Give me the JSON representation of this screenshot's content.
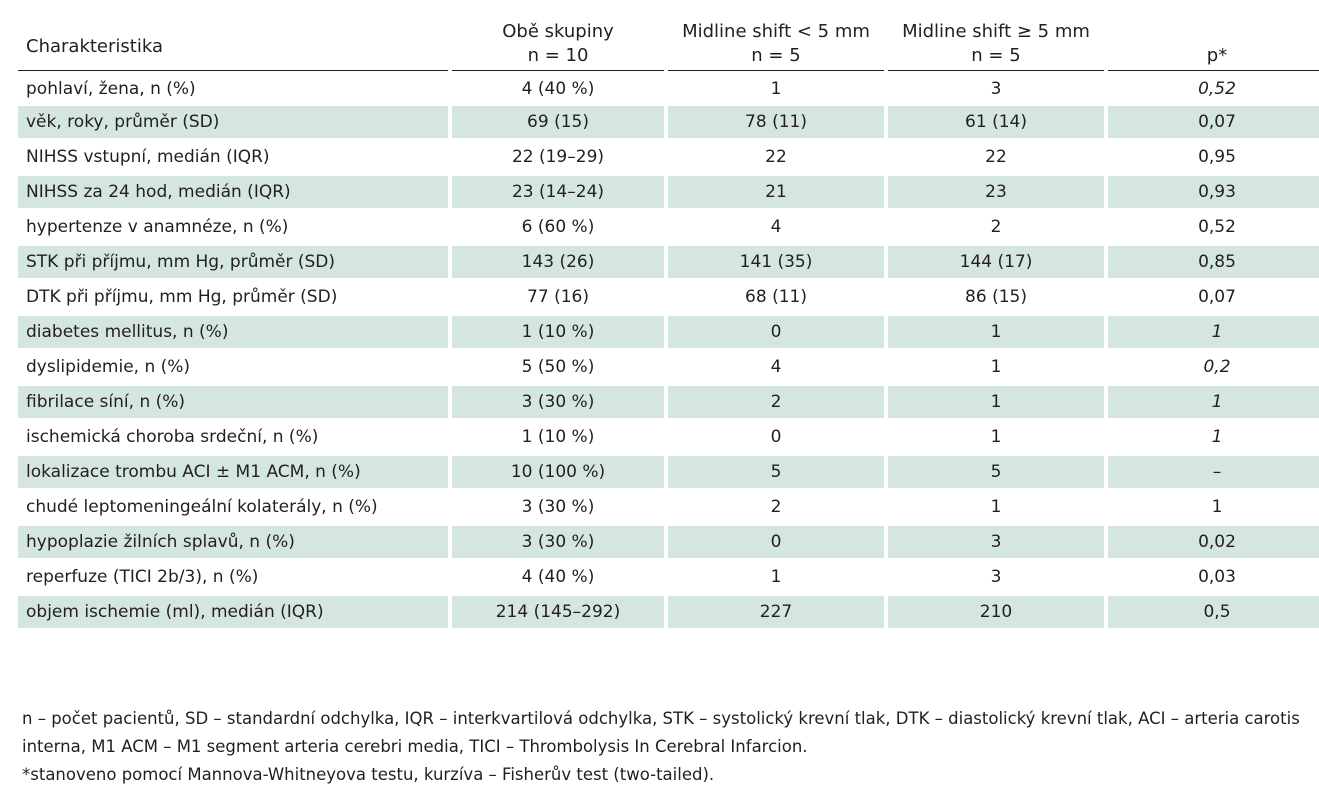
{
  "table": {
    "headers": [
      {
        "line1": "Charakteristika",
        "line2": ""
      },
      {
        "line1": "Obě skupiny",
        "line2": "n = 10"
      },
      {
        "line1": "Midline shift < 5 mm",
        "line2": "n = 5"
      },
      {
        "line1": "Midline shift ≥ 5 mm",
        "line2": "n = 5"
      },
      {
        "line1": "p*",
        "line2": ""
      }
    ],
    "rows": [
      {
        "label": "pohlaví, žena, n (%)",
        "all": "4 (40 %)",
        "lt5": "1",
        "ge5": "3",
        "p": "0,52",
        "p_italic": true,
        "shaded": false
      },
      {
        "label": "věk, roky, průměr (SD)",
        "all": "69 (15)",
        "lt5": "78 (11)",
        "ge5": "61 (14)",
        "p": "0,07",
        "p_italic": false,
        "shaded": true
      },
      {
        "label": "NIHSS vstupní, medián (IQR)",
        "all": "22 (19–29)",
        "lt5": "22",
        "ge5": "22",
        "p": "0,95",
        "p_italic": false,
        "shaded": false
      },
      {
        "label": "NIHSS za 24 hod, medián (IQR)",
        "all": "23 (14–24)",
        "lt5": "21",
        "ge5": "23",
        "p": "0,93",
        "p_italic": false,
        "shaded": true
      },
      {
        "label": "hypertenze v anamnéze, n (%)",
        "all": "6 (60 %)",
        "lt5": "4",
        "ge5": "2",
        "p": "0,52",
        "p_italic": false,
        "shaded": false
      },
      {
        "label": "STK při příjmu, mm Hg, průměr (SD)",
        "all": "143 (26)",
        "lt5": "141 (35)",
        "ge5": "144 (17)",
        "p": "0,85",
        "p_italic": false,
        "shaded": true
      },
      {
        "label": "DTK při příjmu, mm Hg, průměr (SD)",
        "all": "77 (16)",
        "lt5": "68 (11)",
        "ge5": "86 (15)",
        "p": "0,07",
        "p_italic": false,
        "shaded": false
      },
      {
        "label": "diabetes mellitus, n (%)",
        "all": "1 (10 %)",
        "lt5": "0",
        "ge5": "1",
        "p": "1",
        "p_italic": true,
        "shaded": true
      },
      {
        "label": "dyslipidemie, n (%)",
        "all": "5 (50 %)",
        "lt5": "4",
        "ge5": "1",
        "p": "0,2",
        "p_italic": true,
        "shaded": false
      },
      {
        "label": "fibrilace síní, n (%)",
        "all": "3 (30 %)",
        "lt5": "2",
        "ge5": "1",
        "p": "1",
        "p_italic": true,
        "shaded": true
      },
      {
        "label": "ischemická choroba srdeční, n (%)",
        "all": "1 (10 %)",
        "lt5": "0",
        "ge5": "1",
        "p": "1",
        "p_italic": true,
        "shaded": false
      },
      {
        "label": "lokalizace trombu ACI ± M1 ACM, n (%)",
        "all": "10 (100 %)",
        "lt5": "5",
        "ge5": "5",
        "p": "–",
        "p_italic": false,
        "shaded": true
      },
      {
        "label": "chudé leptomeningeální kolaterály, n (%)",
        "all": "3 (30 %)",
        "lt5": "2",
        "ge5": "1",
        "p": "1",
        "p_italic": false,
        "shaded": false
      },
      {
        "label": "hypoplazie žilních splavů, n (%)",
        "all": "3 (30 %)",
        "lt5": "0",
        "ge5": "3",
        "p": "0,02",
        "p_italic": false,
        "shaded": true
      },
      {
        "label": "reperfuze (TICI 2b/3), n (%)",
        "all": "4 (40 %)",
        "lt5": "1",
        "ge5": "3",
        "p": "0,03",
        "p_italic": false,
        "shaded": false
      },
      {
        "label": "objem ischemie (ml), medián (IQR)",
        "all": "214 (145–292)",
        "lt5": "227",
        "ge5": "210",
        "p": "0,5",
        "p_italic": false,
        "shaded": true
      }
    ]
  },
  "footnotes": {
    "abbreviations": "n – počet pacientů, SD – standardní odchylka, IQR – interkvartilová odchylka, STK – systolický krevní tlak, DTK – diastolický krevní tlak, ACI – arteria carotis interna, M1 ACM – M1 segment arteria cerebri media, TICI – Thrombolysis In Cerebral Infarcion.",
    "method": "*stanoveno pomocí Mannova-Whitneyova testu, kurzíva – Fisherův test (two-tailed)."
  },
  "colors": {
    "shaded_row": "#d5e6e1",
    "text": "#231f20"
  }
}
